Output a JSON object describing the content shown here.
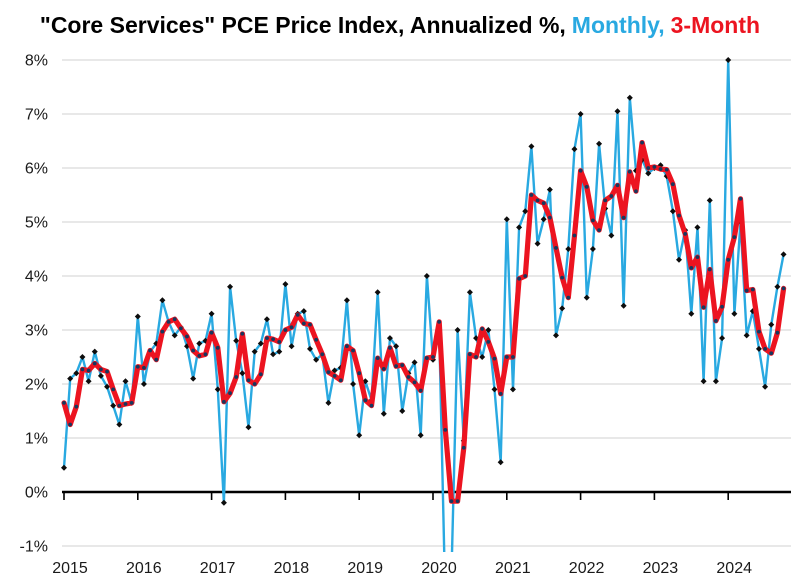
{
  "title": {
    "part1": "\"Core Services\" PCE Price Index, Annualized %,",
    "part2": "Monthly,",
    "part3": "3-Month"
  },
  "colors": {
    "monthly": "#29A9E1",
    "three_month": "#EC1420",
    "blue_marker": "#0d0d0d",
    "red_marker": "#17375E",
    "grid": "#D9D9D9",
    "axis": "#000000",
    "label": "#1a1a1a"
  },
  "chart_data": {
    "type": "line",
    "title": "\"Core Services\" PCE Price Index, Annualized %, Monthly, 3-Month",
    "xlabel": "",
    "ylabel": "",
    "x_start": "Jan 2015",
    "x_end": "Oct 2024",
    "months_per_point": 1,
    "x_tick_labels": [
      "2015",
      "2016",
      "2017",
      "2018",
      "2019",
      "2020",
      "2021",
      "2022",
      "2023",
      "2024"
    ],
    "y_tick_values": [
      8,
      7,
      6,
      5,
      4,
      3,
      2,
      1,
      0,
      -1
    ],
    "y_tick_labels": [
      "8%",
      "7%",
      "6%",
      "5%",
      "4%",
      "3%",
      "2%",
      "1%",
      "0%",
      "-1%"
    ],
    "ylim": [
      -1,
      8
    ],
    "grid": true,
    "legend_position": "in-title",
    "series": [
      {
        "name": "Monthly",
        "color": "#29A9E1",
        "values": [
          0.45,
          2.1,
          2.2,
          2.5,
          2.05,
          2.6,
          2.15,
          1.95,
          1.6,
          1.25,
          2.05,
          1.65,
          3.25,
          2.0,
          2.6,
          2.75,
          3.55,
          3.15,
          2.9,
          3.05,
          2.7,
          2.1,
          2.75,
          2.8,
          3.3,
          1.9,
          -0.2,
          3.8,
          2.8,
          2.2,
          1.2,
          2.6,
          2.75,
          3.2,
          2.55,
          2.6,
          3.85,
          2.7,
          3.3,
          3.35,
          2.65,
          2.45,
          2.55,
          1.65,
          2.25,
          2.3,
          3.55,
          2.0,
          1.05,
          2.05,
          1.7,
          3.7,
          1.45,
          2.85,
          2.7,
          1.5,
          2.2,
          2.4,
          1.05,
          4.0,
          2.45,
          3.0,
          -2.0,
          -1.5,
          3.0,
          0.95,
          3.7,
          2.85,
          2.5,
          3.0,
          1.9,
          0.55,
          5.05,
          1.9,
          4.9,
          5.2,
          6.4,
          4.6,
          5.05,
          5.6,
          2.9,
          3.4,
          4.5,
          6.35,
          7.0,
          3.6,
          4.5,
          6.45,
          5.25,
          4.75,
          7.05,
          3.45,
          7.3,
          5.95,
          6.15,
          5.9,
          6.0,
          6.05,
          5.85,
          5.2,
          4.3,
          4.85,
          3.3,
          4.9,
          2.05,
          5.4,
          2.05,
          2.85,
          8.0,
          3.3,
          5.0,
          2.9,
          3.35,
          2.65,
          1.95,
          3.1,
          3.8,
          4.4
        ]
      },
      {
        "name": "3-Month",
        "color": "#EC1420",
        "values": [
          1.65,
          1.25,
          1.58,
          2.27,
          2.25,
          2.38,
          2.27,
          2.23,
          1.9,
          1.6,
          1.63,
          1.65,
          2.32,
          2.3,
          2.62,
          2.45,
          2.97,
          3.15,
          3.2,
          3.03,
          2.88,
          2.62,
          2.52,
          2.55,
          2.95,
          2.67,
          1.67,
          1.83,
          2.13,
          2.93,
          2.07,
          2.0,
          2.18,
          2.85,
          2.83,
          2.78,
          3.0,
          3.05,
          3.28,
          3.12,
          3.1,
          2.82,
          2.55,
          2.22,
          2.15,
          2.07,
          2.7,
          2.62,
          2.2,
          1.7,
          1.6,
          2.48,
          2.28,
          2.67,
          2.33,
          2.35,
          2.13,
          2.03,
          1.88,
          2.48,
          2.5,
          3.15,
          1.15,
          -0.17,
          -0.17,
          0.82,
          2.55,
          2.5,
          3.02,
          2.78,
          2.47,
          1.82,
          2.5,
          2.5,
          3.95,
          4.0,
          5.5,
          5.4,
          5.35,
          5.08,
          4.52,
          3.97,
          3.6,
          4.75,
          5.95,
          5.65,
          5.03,
          4.85,
          5.4,
          5.48,
          5.68,
          5.08,
          5.93,
          5.57,
          6.47,
          6.0,
          6.02,
          5.98,
          5.97,
          5.7,
          5.12,
          4.78,
          4.15,
          4.35,
          3.42,
          4.12,
          3.17,
          3.43,
          4.3,
          4.72,
          5.43,
          3.73,
          3.75,
          2.97,
          2.65,
          2.57,
          2.95,
          3.77
        ]
      }
    ]
  }
}
